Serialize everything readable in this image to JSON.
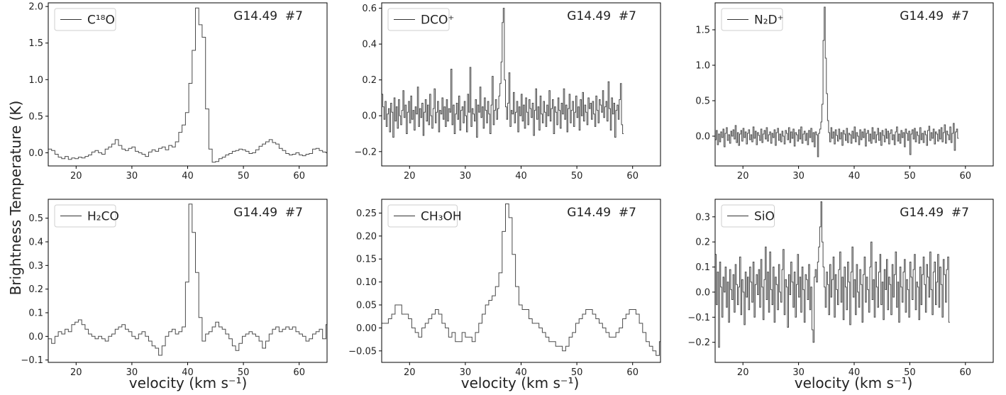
{
  "figure": {
    "ylabel": "Brightness Temperature (K)",
    "xlabel": "velocity (km s⁻¹)"
  },
  "chart_data": [
    {
      "type": "line",
      "step": true,
      "legend": "C18O",
      "legend_label": "C¹⁸O",
      "legend_position": "top-left",
      "annotation": "G14.49  #7",
      "xlim": [
        15,
        65
      ],
      "ylim": [
        -0.18,
        2.05
      ],
      "xticks": [
        20,
        30,
        40,
        50,
        60
      ],
      "yticks": [
        0.0,
        0.5,
        1.0,
        1.5,
        2.0
      ],
      "ytick_labels": [
        "0.0",
        "0.5",
        "1.0",
        "1.5",
        "2.0"
      ],
      "x_start": 15.0,
      "x_step": 0.6,
      "values": [
        0.05,
        0.03,
        -0.02,
        -0.06,
        -0.08,
        -0.05,
        -0.09,
        -0.07,
        -0.08,
        -0.06,
        -0.07,
        -0.05,
        -0.03,
        0.01,
        0.03,
        0.0,
        -0.02,
        0.05,
        0.08,
        0.12,
        0.18,
        0.1,
        0.05,
        0.03,
        0.06,
        0.08,
        0.02,
        0.0,
        -0.02,
        -0.05,
        0.01,
        0.04,
        0.02,
        0.06,
        0.08,
        0.04,
        0.1,
        0.08,
        0.15,
        0.28,
        0.38,
        0.55,
        0.95,
        1.4,
        1.98,
        1.75,
        1.58,
        0.6,
        0.05,
        -0.13,
        -0.12,
        -0.08,
        -0.06,
        -0.03,
        -0.01,
        0.02,
        0.03,
        0.05,
        0.04,
        0.02,
        -0.01,
        0.0,
        0.04,
        0.09,
        0.12,
        0.15,
        0.18,
        0.14,
        0.12,
        0.06,
        0.03,
        -0.01,
        -0.03,
        -0.02,
        0.0,
        -0.03,
        -0.04,
        -0.02,
        -0.01,
        0.05,
        0.06,
        0.03,
        0.01,
        0.0
      ]
    },
    {
      "type": "line",
      "step": true,
      "legend": "DCO+",
      "legend_label": "DCO⁺",
      "legend_position": "top-left",
      "annotation": "G14.49  #7",
      "xlim": [
        15,
        65
      ],
      "ylim": [
        -0.28,
        0.63
      ],
      "xticks": [
        20,
        30,
        40,
        50,
        60
      ],
      "yticks": [
        -0.2,
        0.0,
        0.2,
        0.4,
        0.6
      ],
      "ytick_labels": [
        "−0.2",
        "0.0",
        "0.2",
        "0.4",
        "0.6"
      ],
      "x_start": 15.0,
      "x_step": 0.2,
      "values": [
        0.12,
        0.05,
        -0.02,
        0.08,
        -0.06,
        0.01,
        0.04,
        -0.09,
        0.07,
        0.02,
        -0.12,
        0.1,
        -0.03,
        0.05,
        -0.07,
        0.09,
        0.0,
        -0.05,
        0.03,
        0.14,
        -0.01,
        0.06,
        -0.1,
        0.02,
        0.08,
        -0.04,
        0.11,
        -0.02,
        0.03,
        -0.08,
        0.05,
        0.01,
        0.16,
        -0.06,
        0.04,
        -0.01,
        0.07,
        -0.11,
        0.02,
        0.09,
        -0.03,
        0.06,
        -0.05,
        0.12,
        0.0,
        -0.07,
        0.04,
        0.15,
        -0.04,
        0.02,
        0.08,
        -0.09,
        0.03,
        0.01,
        0.1,
        -0.02,
        0.05,
        -0.06,
        0.09,
        -0.03,
        0.04,
        0.02,
        0.26,
        -0.05,
        0.06,
        -0.1,
        0.01,
        0.07,
        -0.02,
        0.11,
        -0.08,
        0.03,
        0.05,
        -0.04,
        0.08,
        0.0,
        -0.09,
        0.12,
        0.02,
        0.27,
        -0.06,
        0.04,
        0.01,
        -0.03,
        0.09,
        -0.12,
        0.06,
        0.02,
        0.16,
        -0.01,
        0.05,
        -0.07,
        0.1,
        0.03,
        -0.04,
        0.08,
        0.01,
        -0.1,
        0.06,
        0.22,
        -0.05,
        0.03,
        0.09,
        -0.02,
        0.04,
        0.11,
        0.18,
        0.3,
        0.52,
        0.6,
        0.2,
        0.05,
        -0.02,
        0.07,
        0.24,
        -0.06,
        0.03,
        0.01,
        0.13,
        -0.04,
        0.02,
        0.08,
        -0.09,
        0.05,
        0.0,
        0.12,
        -0.03,
        0.06,
        -0.07,
        0.1,
        0.02,
        -0.05,
        0.09,
        0.04,
        -0.01,
        0.07,
        -0.11,
        0.03,
        0.15,
        -0.02,
        0.05,
        -0.08,
        0.11,
        0.01,
        -0.04,
        0.08,
        0.02,
        -0.06,
        0.06,
        0.0,
        0.14,
        -0.03,
        0.04,
        0.09,
        -0.1,
        0.05,
        0.02,
        -0.05,
        0.1,
        0.03,
        -0.07,
        0.07,
        0.01,
        0.15,
        -0.02,
        0.06,
        -0.09,
        0.04,
        0.12,
        -0.04,
        0.03,
        0.08,
        -0.06,
        0.02,
        0.11,
        -0.01,
        0.05,
        -0.08,
        0.09,
        0.0,
        0.13,
        -0.03,
        0.06,
        0.02,
        -0.05,
        0.1,
        0.04,
        0.07,
        -0.02,
        0.08,
        0.01,
        -0.06,
        0.11,
        0.03,
        -0.04,
        0.09,
        0.06,
        0.02,
        0.14,
        -0.01,
        0.05,
        0.08,
        -0.03,
        0.19,
        0.04,
        -0.08,
        0.1,
        0.01,
        0.07,
        -0.12,
        0.03,
        0.06,
        -0.02,
        0.09,
        0.18,
        -0.05,
        -0.1
      ]
    },
    {
      "type": "line",
      "step": true,
      "legend": "N2D+",
      "legend_label": "N₂D⁺",
      "legend_position": "top-left",
      "annotation": "G14.49  #7",
      "xlim": [
        15,
        65
      ],
      "ylim": [
        -0.42,
        1.88
      ],
      "xticks": [
        20,
        30,
        40,
        50,
        60
      ],
      "yticks": [
        0.0,
        0.5,
        1.0,
        1.5
      ],
      "ytick_labels": [
        "0.0",
        "0.5",
        "1.0",
        "1.5"
      ],
      "x_start": 15.0,
      "x_step": 0.2,
      "values": [
        -0.05,
        0.08,
        -0.12,
        0.03,
        -0.08,
        0.06,
        -0.02,
        0.1,
        -0.15,
        0.04,
        0.12,
        -0.06,
        0.02,
        -0.1,
        0.07,
        0.0,
        0.09,
        -0.04,
        0.15,
        -0.09,
        0.05,
        -0.13,
        0.03,
        0.08,
        -0.07,
        0.11,
        -0.02,
        0.06,
        -0.11,
        0.04,
        0.09,
        -0.05,
        0.02,
        -0.08,
        0.13,
        -0.03,
        0.07,
        -0.12,
        0.05,
        0.01,
        -0.06,
        0.1,
        -0.09,
        0.03,
        0.08,
        -0.04,
        0.12,
        -0.07,
        0.02,
        0.06,
        -0.1,
        0.04,
        -0.02,
        0.09,
        -0.13,
        0.05,
        0.11,
        -0.06,
        0.03,
        -0.08,
        0.07,
        0.0,
        -0.11,
        0.08,
        0.04,
        -0.05,
        0.12,
        -0.09,
        0.06,
        -0.03,
        0.1,
        -0.14,
        0.05,
        0.02,
        -0.07,
        0.09,
        -0.04,
        0.13,
        -0.1,
        0.03,
        0.07,
        -0.06,
        0.04,
        -0.12,
        0.08,
        -0.02,
        0.11,
        -0.08,
        0.05,
        -0.15,
        0.06,
        0.02,
        -0.29,
        0.04,
        0.1,
        0.2,
        0.45,
        1.35,
        1.82,
        1.1,
        0.6,
        0.22,
        0.05,
        -0.08,
        0.12,
        -0.03,
        0.06,
        -0.11,
        0.09,
        0.01,
        -0.07,
        0.1,
        -0.04,
        0.05,
        -0.13,
        0.08,
        0.03,
        -0.06,
        0.11,
        -0.09,
        0.04,
        0.02,
        -0.1,
        0.07,
        -0.03,
        0.13,
        -0.08,
        0.05,
        0.0,
        -0.12,
        0.09,
        -0.05,
        0.06,
        -0.02,
        0.1,
        -0.14,
        0.04,
        0.08,
        -0.07,
        0.03,
        -0.1,
        0.12,
        -0.04,
        0.06,
        -0.09,
        0.02,
        0.11,
        -0.06,
        0.05,
        -0.13,
        0.08,
        0.01,
        -0.08,
        0.1,
        -0.03,
        0.07,
        -0.11,
        0.04,
        0.09,
        -0.05,
        0.02,
        -0.12,
        0.06,
        0.13,
        -0.07,
        0.03,
        -0.1,
        0.08,
        -0.02,
        0.05,
        -0.15,
        0.1,
        0.04,
        -0.06,
        0.07,
        -0.26,
        0.03,
        0.09,
        -0.04,
        0.11,
        -0.08,
        0.06,
        0.01,
        -0.1,
        0.12,
        -0.05,
        0.04,
        -0.09,
        0.07,
        0.02,
        -0.13,
        0.08,
        0.14,
        -0.06,
        0.05,
        -0.03,
        0.1,
        -0.11,
        0.06,
        0.03,
        -0.07,
        0.09,
        -0.04,
        0.12,
        -0.08,
        0.05,
        0.16,
        -0.1,
        0.07,
        0.02,
        -0.05,
        0.13,
        -0.09,
        0.04,
        0.18,
        -0.2,
        0.06,
        0.1,
        -0.03
      ]
    },
    {
      "type": "line",
      "step": true,
      "legend": "H2CO",
      "legend_label": "H₂CO",
      "legend_position": "top-left",
      "annotation": "G14.49  #7",
      "xlim": [
        15,
        65
      ],
      "ylim": [
        -0.11,
        0.58
      ],
      "xticks": [
        20,
        30,
        40,
        50,
        60
      ],
      "yticks": [
        -0.1,
        0.0,
        0.1,
        0.2,
        0.3,
        0.4,
        0.5
      ],
      "ytick_labels": [
        "−0.1",
        "0.0",
        "0.1",
        "0.2",
        "0.3",
        "0.4",
        "0.5"
      ],
      "x_start": 15.0,
      "x_step": 0.6,
      "values": [
        -0.01,
        -0.03,
        0.0,
        0.02,
        0.01,
        0.03,
        0.02,
        0.05,
        0.06,
        0.07,
        0.05,
        0.03,
        0.01,
        0.0,
        -0.01,
        0.0,
        -0.01,
        -0.02,
        0.0,
        0.01,
        0.03,
        0.04,
        0.05,
        0.03,
        0.02,
        0.0,
        -0.01,
        0.01,
        0.02,
        0.0,
        -0.02,
        -0.04,
        -0.05,
        -0.08,
        -0.04,
        0.0,
        0.02,
        0.03,
        0.01,
        0.02,
        0.04,
        0.23,
        0.56,
        0.44,
        0.27,
        0.08,
        -0.02,
        0.01,
        0.02,
        0.04,
        0.06,
        0.04,
        0.03,
        0.01,
        -0.01,
        -0.04,
        -0.06,
        -0.03,
        0.0,
        0.01,
        0.02,
        0.01,
        0.0,
        -0.02,
        -0.05,
        -0.02,
        0.01,
        0.03,
        0.04,
        0.02,
        0.03,
        0.04,
        0.03,
        0.04,
        0.02,
        0.01,
        0.0,
        -0.02,
        -0.01,
        0.01,
        0.02,
        0.03,
        -0.01,
        0.05
      ]
    },
    {
      "type": "line",
      "step": true,
      "legend": "CH3OH",
      "legend_label": "CH₃OH",
      "legend_position": "top-left",
      "annotation": "G14.49  #7",
      "xlim": [
        15,
        65
      ],
      "ylim": [
        -0.075,
        0.28
      ],
      "xticks": [
        20,
        30,
        40,
        50,
        60
      ],
      "yticks": [
        -0.05,
        0.0,
        0.05,
        0.1,
        0.15,
        0.2,
        0.25
      ],
      "ytick_labels": [
        "−0.05",
        "0.00",
        "0.05",
        "0.10",
        "0.15",
        "0.20",
        "0.25"
      ],
      "x_start": 15.0,
      "x_step": 0.6,
      "values": [
        0.01,
        0.01,
        0.02,
        0.03,
        0.05,
        0.05,
        0.03,
        0.03,
        0.02,
        0.0,
        -0.01,
        -0.02,
        0.0,
        0.01,
        0.02,
        0.03,
        0.04,
        0.03,
        0.01,
        0.0,
        -0.02,
        -0.01,
        -0.03,
        -0.03,
        -0.01,
        -0.02,
        -0.02,
        -0.03,
        -0.01,
        0.01,
        0.03,
        0.05,
        0.06,
        0.07,
        0.09,
        0.12,
        0.21,
        0.27,
        0.24,
        0.16,
        0.09,
        0.05,
        0.04,
        0.04,
        0.02,
        0.01,
        0.01,
        0.0,
        -0.01,
        -0.02,
        -0.03,
        -0.03,
        -0.04,
        -0.04,
        -0.05,
        -0.04,
        -0.02,
        -0.01,
        0.01,
        0.02,
        0.03,
        0.04,
        0.04,
        0.03,
        0.02,
        0.01,
        0.0,
        -0.01,
        -0.02,
        -0.02,
        -0.01,
        0.0,
        0.02,
        0.03,
        0.04,
        0.04,
        0.03,
        0.01,
        -0.01,
        -0.03,
        -0.04,
        -0.05,
        -0.06,
        -0.03
      ]
    },
    {
      "type": "line",
      "step": true,
      "legend": "SiO",
      "legend_label": "SiO",
      "legend_position": "top-left",
      "annotation": "G14.49  #7",
      "xlim": [
        15,
        65
      ],
      "ylim": [
        -0.28,
        0.37
      ],
      "xticks": [
        20,
        30,
        40,
        50,
        60
      ],
      "yticks": [
        -0.2,
        -0.1,
        0.0,
        0.1,
        0.2,
        0.3
      ],
      "ytick_labels": [
        "−0.2",
        "−0.1",
        "0.0",
        "0.1",
        "0.2",
        "0.3"
      ],
      "x_start": 15.0,
      "x_step": 0.2,
      "values": [
        0.15,
        -0.05,
        0.08,
        -0.22,
        0.12,
        0.02,
        -0.1,
        0.06,
        0.0,
        0.1,
        -0.06,
        0.04,
        -0.12,
        0.09,
        0.01,
        -0.03,
        0.07,
        -0.08,
        0.11,
        0.03,
        -0.05,
        0.02,
        0.14,
        -0.09,
        0.05,
        0.0,
        -0.13,
        0.08,
        -0.02,
        0.06,
        -0.07,
        0.1,
        0.04,
        -0.04,
        0.12,
        -0.1,
        0.03,
        0.07,
        -0.01,
        0.09,
        -0.06,
        0.13,
        0.02,
        -0.11,
        0.05,
        0.18,
        -0.03,
        0.08,
        -0.08,
        0.16,
        0.01,
        -0.05,
        0.1,
        -0.12,
        0.06,
        0.03,
        -0.07,
        0.11,
        0.0,
        -0.04,
        0.09,
        0.17,
        -0.09,
        0.05,
        0.02,
        -0.14,
        0.07,
        -0.01,
        0.12,
        0.04,
        -0.06,
        0.08,
        -0.1,
        0.03,
        0.15,
        -0.02,
        0.06,
        -0.08,
        0.1,
        0.01,
        -0.12,
        0.07,
        0.05,
        -0.03,
        0.11,
        -0.07,
        0.02,
        -0.15,
        -0.2,
        0.06,
        0.09,
        0.04,
        0.12,
        0.18,
        0.26,
        0.36,
        0.2,
        0.1,
        0.02,
        -0.06,
        0.08,
        0.03,
        -0.09,
        0.11,
        -0.02,
        0.05,
        0.14,
        -0.1,
        0.07,
        0.01,
        -0.05,
        0.09,
        0.16,
        -0.04,
        0.06,
        -0.11,
        0.1,
        0.02,
        -0.07,
        0.12,
        0.04,
        -0.13,
        0.08,
        0.18,
        -0.02,
        0.05,
        -0.09,
        0.11,
        0.0,
        -0.06,
        0.09,
        0.03,
        -0.12,
        0.07,
        0.14,
        -0.04,
        0.06,
        0.01,
        -0.08,
        0.1,
        0.2,
        -0.03,
        0.05,
        -0.1,
        0.12,
        0.02,
        -0.06,
        0.08,
        0.15,
        -0.05,
        0.04,
        -0.11,
        0.09,
        0.01,
        0.13,
        -0.07,
        0.06,
        0.03,
        -0.09,
        0.11,
        -0.02,
        0.07,
        0.16,
        -0.06,
        0.04,
        -0.12,
        0.1,
        0.02,
        -0.04,
        0.08,
        0.13,
        -0.08,
        0.05,
        0.01,
        -0.1,
        0.12,
        0.06,
        -0.03,
        0.09,
        0.15,
        -0.07,
        0.04,
        0.02,
        -0.11,
        0.1,
        -0.05,
        0.07,
        0.14,
        0.03,
        -0.08,
        0.11,
        0.06,
        -0.02,
        0.16,
        0.01,
        -0.09,
        0.08,
        0.12,
        -0.05,
        0.04,
        0.15,
        -0.06,
        0.1,
        0.03,
        -0.1,
        0.13,
        0.07,
        -0.04,
        0.09,
        0.14,
        -0.12
      ]
    }
  ]
}
